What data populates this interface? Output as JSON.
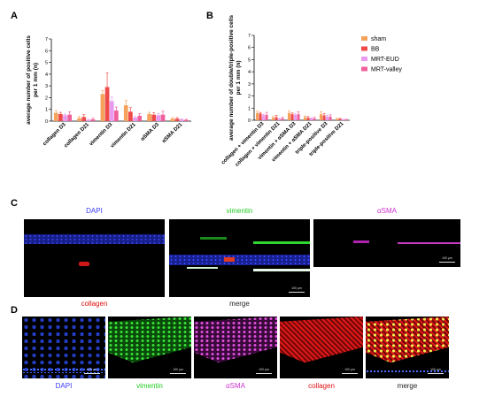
{
  "panels": {
    "a": "A",
    "b": "B",
    "c": "C",
    "d": "D"
  },
  "colors": {
    "sham": "#f5a25d",
    "BB": "#ef4a4a",
    "MRT-EUD": "#e79af0",
    "MRT-valley": "#f0619c",
    "DAPI": "#3a3aff",
    "vimentin": "#22cc22",
    "aSMA": "#cc33cc",
    "collagen": "#e01010",
    "merge": "#222222"
  },
  "legend": [
    "sham",
    "BB",
    "MRT-EUD",
    "MRT-valley"
  ],
  "chart_data": [
    {
      "type": "bar",
      "panel": "A",
      "ylabel": "average number of positive cells per 1 mm (n)",
      "ylim": [
        0,
        7
      ],
      "yticks": [
        0,
        1,
        2,
        3,
        4,
        5,
        6,
        7
      ],
      "categories": [
        "collagen D3",
        "collagen D21",
        "vimentin D3",
        "vimentin D21",
        "αSMA D3",
        "αSMA D21"
      ],
      "series": [
        {
          "name": "sham",
          "values": [
            0.7,
            0.25,
            2.3,
            1.35,
            0.6,
            0.2
          ],
          "errors": [
            0.2,
            0.15,
            0.3,
            0.4,
            0.15,
            0.1
          ]
        },
        {
          "name": "BB",
          "values": [
            0.6,
            0.35,
            2.9,
            0.8,
            0.55,
            0.2
          ],
          "errors": [
            0.15,
            0.2,
            1.2,
            0.35,
            0.15,
            0.1
          ]
        },
        {
          "name": "MRT-EUD",
          "values": [
            0.5,
            0.1,
            1.7,
            0.3,
            0.5,
            0.15
          ],
          "errors": [
            0.1,
            0.05,
            0.35,
            0.1,
            0.15,
            0.05
          ]
        },
        {
          "name": "MRT-valley",
          "values": [
            0.55,
            0.15,
            0.9,
            0.45,
            0.55,
            0.1
          ],
          "errors": [
            0.25,
            0.1,
            0.3,
            0.2,
            0.3,
            0.05
          ]
        }
      ]
    },
    {
      "type": "bar",
      "panel": "B",
      "ylabel": "average number of double/triple-positive cells per 1 mm (n)",
      "ylim": [
        0,
        7
      ],
      "yticks": [
        0,
        1,
        2,
        3,
        4,
        5,
        6,
        7
      ],
      "categories": [
        "collagen + vimentin D3",
        "collagen + vimentin D21",
        "vimentin + αSMA D3",
        "vimentin + αSMA D21",
        "triple-positive D3",
        "triple-positive D21"
      ],
      "series": [
        {
          "name": "sham",
          "values": [
            0.6,
            0.2,
            0.6,
            0.25,
            0.5,
            0.1
          ],
          "errors": [
            0.15,
            0.1,
            0.15,
            0.1,
            0.2,
            0.05
          ]
        },
        {
          "name": "BB",
          "values": [
            0.55,
            0.25,
            0.5,
            0.2,
            0.4,
            0.1
          ],
          "errors": [
            0.1,
            0.15,
            0.1,
            0.1,
            0.15,
            0.05
          ]
        },
        {
          "name": "MRT-EUD",
          "values": [
            0.4,
            0.1,
            0.45,
            0.15,
            0.3,
            0.05
          ],
          "errors": [
            0.1,
            0.05,
            0.1,
            0.05,
            0.1,
            0.03
          ]
        },
        {
          "name": "MRT-valley",
          "values": [
            0.45,
            0.15,
            0.5,
            0.15,
            0.3,
            0.05
          ],
          "errors": [
            0.2,
            0.1,
            0.2,
            0.1,
            0.15,
            0.03
          ]
        }
      ]
    }
  ],
  "panel_c": {
    "labels": [
      "DAPI",
      "vimentin",
      "αSMA",
      "collagen",
      "merge"
    ],
    "scale": "100 μm"
  },
  "panel_d": {
    "labels": [
      "DAPI",
      "vimentin",
      "αSMA",
      "collagen",
      "merge"
    ],
    "scale": "100 μm"
  }
}
